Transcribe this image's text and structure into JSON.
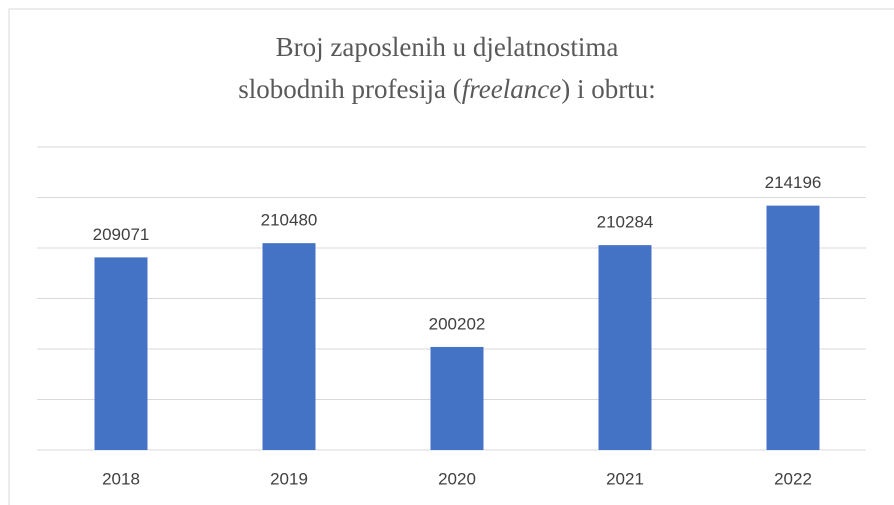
{
  "chart_data": {
    "type": "bar",
    "title": [
      "Broj zaposlenih u djelatnostima",
      [
        "slobodnih profesija (",
        "freelance",
        ") i obrtu:"
      ]
    ],
    "categories": [
      "2018",
      "2019",
      "2020",
      "2021",
      "2022"
    ],
    "values": [
      209071,
      210480,
      200202,
      210284,
      214196
    ],
    "color": "#4472c4",
    "ylim": [
      190000,
      220000
    ],
    "yticks": [
      190000,
      195000,
      200000,
      205000,
      210000,
      215000,
      220000
    ],
    "grid": true
  }
}
